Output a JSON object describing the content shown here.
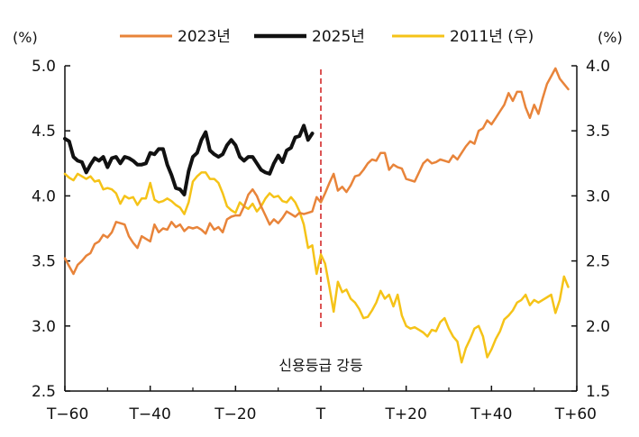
{
  "chart_data": {
    "type": "line",
    "left_axis_unit": "(%)",
    "right_axis_unit": "(%)",
    "x_ticks": [
      "T−60",
      "T−40",
      "T−20",
      "T",
      "T+20",
      "T+40",
      "T+60"
    ],
    "x_range": [
      -60,
      60
    ],
    "ylim_left": [
      2.5,
      5.0
    ],
    "ylim_right": [
      1.5,
      4.0
    ],
    "y_ticks_left": [
      "2.5",
      "3.0",
      "3.5",
      "4.0",
      "4.5",
      "5.0"
    ],
    "y_ticks_right": [
      "1.5",
      "2.0",
      "2.5",
      "3.0",
      "3.5",
      "4.0"
    ],
    "grid": false,
    "legend_position": "top",
    "annotation": {
      "text": "신용등급 강등",
      "x": 0
    },
    "series": [
      {
        "name": "2023년",
        "axis": "left",
        "color": "#e8843a",
        "width": 2.5,
        "points": [
          [
            -60,
            3.52
          ],
          [
            -59,
            3.46
          ],
          [
            -58,
            3.4
          ],
          [
            -57,
            3.47
          ],
          [
            -56,
            3.5
          ],
          [
            -55,
            3.54
          ],
          [
            -54,
            3.56
          ],
          [
            -53,
            3.63
          ],
          [
            -52,
            3.65
          ],
          [
            -51,
            3.7
          ],
          [
            -50,
            3.68
          ],
          [
            -49,
            3.72
          ],
          [
            -48,
            3.8
          ],
          [
            -47,
            3.79
          ],
          [
            -46,
            3.78
          ],
          [
            -45,
            3.69
          ],
          [
            -44,
            3.64
          ],
          [
            -43,
            3.6
          ],
          [
            -42,
            3.69
          ],
          [
            -41,
            3.67
          ],
          [
            -40,
            3.65
          ],
          [
            -39,
            3.78
          ],
          [
            -38,
            3.72
          ],
          [
            -37,
            3.75
          ],
          [
            -36,
            3.74
          ],
          [
            -35,
            3.8
          ],
          [
            -34,
            3.76
          ],
          [
            -33,
            3.78
          ],
          [
            -32,
            3.73
          ],
          [
            -31,
            3.76
          ],
          [
            -30,
            3.75
          ],
          [
            -29,
            3.76
          ],
          [
            -28,
            3.74
          ],
          [
            -27,
            3.71
          ],
          [
            -26,
            3.79
          ],
          [
            -25,
            3.74
          ],
          [
            -24,
            3.76
          ],
          [
            -23,
            3.72
          ],
          [
            -22,
            3.82
          ],
          [
            -21,
            3.84
          ],
          [
            -20,
            3.85
          ],
          [
            -19,
            3.85
          ],
          [
            -18,
            3.92
          ],
          [
            -17,
            4.01
          ],
          [
            -16,
            4.05
          ],
          [
            -15,
            4.0
          ],
          [
            -14,
            3.92
          ],
          [
            -13,
            3.85
          ],
          [
            -12,
            3.78
          ],
          [
            -11,
            3.82
          ],
          [
            -10,
            3.79
          ],
          [
            -9,
            3.83
          ],
          [
            -8,
            3.88
          ],
          [
            -7,
            3.86
          ],
          [
            -6,
            3.84
          ],
          [
            -5,
            3.87
          ],
          [
            -4,
            3.86
          ],
          [
            -3,
            3.87
          ],
          [
            -2,
            3.88
          ],
          [
            -1,
            3.99
          ],
          [
            0,
            3.95
          ],
          [
            1,
            4.02
          ],
          [
            2,
            4.1
          ],
          [
            3,
            4.17
          ],
          [
            4,
            4.04
          ],
          [
            5,
            4.07
          ],
          [
            6,
            4.03
          ],
          [
            7,
            4.08
          ],
          [
            8,
            4.15
          ],
          [
            9,
            4.16
          ],
          [
            10,
            4.2
          ],
          [
            11,
            4.25
          ],
          [
            12,
            4.28
          ],
          [
            13,
            4.27
          ],
          [
            14,
            4.33
          ],
          [
            15,
            4.33
          ],
          [
            16,
            4.2
          ],
          [
            17,
            4.24
          ],
          [
            18,
            4.22
          ],
          [
            19,
            4.21
          ],
          [
            20,
            4.13
          ],
          [
            21,
            4.12
          ],
          [
            22,
            4.11
          ],
          [
            23,
            4.18
          ],
          [
            24,
            4.25
          ],
          [
            25,
            4.28
          ],
          [
            26,
            4.25
          ],
          [
            27,
            4.26
          ],
          [
            28,
            4.28
          ],
          [
            29,
            4.27
          ],
          [
            30,
            4.26
          ],
          [
            31,
            4.31
          ],
          [
            32,
            4.28
          ],
          [
            33,
            4.33
          ],
          [
            34,
            4.38
          ],
          [
            35,
            4.42
          ],
          [
            36,
            4.4
          ],
          [
            37,
            4.5
          ],
          [
            38,
            4.52
          ],
          [
            39,
            4.58
          ],
          [
            40,
            4.55
          ],
          [
            41,
            4.6
          ],
          [
            42,
            4.65
          ],
          [
            43,
            4.7
          ],
          [
            44,
            4.79
          ],
          [
            45,
            4.73
          ],
          [
            46,
            4.8
          ],
          [
            47,
            4.8
          ],
          [
            48,
            4.68
          ],
          [
            49,
            4.6
          ],
          [
            50,
            4.7
          ],
          [
            51,
            4.63
          ],
          [
            52,
            4.75
          ],
          [
            53,
            4.86
          ],
          [
            54,
            4.92
          ],
          [
            55,
            4.98
          ],
          [
            56,
            4.9
          ],
          [
            57,
            4.86
          ],
          [
            58,
            4.82
          ]
        ]
      },
      {
        "name": "2025년",
        "axis": "left",
        "color": "#111111",
        "width": 4,
        "points": [
          [
            -60,
            4.44
          ],
          [
            -59,
            4.42
          ],
          [
            -58,
            4.3
          ],
          [
            -57,
            4.27
          ],
          [
            -56,
            4.26
          ],
          [
            -55,
            4.18
          ],
          [
            -54,
            4.24
          ],
          [
            -53,
            4.29
          ],
          [
            -52,
            4.27
          ],
          [
            -51,
            4.3
          ],
          [
            -50,
            4.22
          ],
          [
            -49,
            4.29
          ],
          [
            -48,
            4.3
          ],
          [
            -47,
            4.25
          ],
          [
            -46,
            4.3
          ],
          [
            -45,
            4.29
          ],
          [
            -44,
            4.27
          ],
          [
            -43,
            4.24
          ],
          [
            -42,
            4.24
          ],
          [
            -41,
            4.25
          ],
          [
            -40,
            4.33
          ],
          [
            -39,
            4.32
          ],
          [
            -38,
            4.36
          ],
          [
            -37,
            4.36
          ],
          [
            -36,
            4.24
          ],
          [
            -35,
            4.16
          ],
          [
            -34,
            4.06
          ],
          [
            -33,
            4.05
          ],
          [
            -32,
            4.01
          ],
          [
            -31,
            4.19
          ],
          [
            -30,
            4.3
          ],
          [
            -29,
            4.33
          ],
          [
            -28,
            4.43
          ],
          [
            -27,
            4.49
          ],
          [
            -26,
            4.35
          ],
          [
            -25,
            4.32
          ],
          [
            -24,
            4.3
          ],
          [
            -23,
            4.32
          ],
          [
            -22,
            4.39
          ],
          [
            -21,
            4.43
          ],
          [
            -20,
            4.39
          ],
          [
            -19,
            4.3
          ],
          [
            -18,
            4.27
          ],
          [
            -17,
            4.3
          ],
          [
            -16,
            4.3
          ],
          [
            -15,
            4.25
          ],
          [
            -14,
            4.2
          ],
          [
            -13,
            4.18
          ],
          [
            -12,
            4.17
          ],
          [
            -11,
            4.25
          ],
          [
            -10,
            4.31
          ],
          [
            -9,
            4.26
          ],
          [
            -8,
            4.35
          ],
          [
            -7,
            4.37
          ],
          [
            -6,
            4.45
          ],
          [
            -5,
            4.46
          ],
          [
            -4,
            4.54
          ],
          [
            -3,
            4.43
          ],
          [
            -2,
            4.48
          ]
        ]
      },
      {
        "name": "2011년 (우)",
        "axis": "right",
        "color": "#f5c318",
        "width": 2.5,
        "points": [
          [
            -60,
            3.17
          ],
          [
            -59,
            3.14
          ],
          [
            -58,
            3.12
          ],
          [
            -57,
            3.17
          ],
          [
            -56,
            3.15
          ],
          [
            -55,
            3.13
          ],
          [
            -54,
            3.15
          ],
          [
            -53,
            3.11
          ],
          [
            -52,
            3.12
          ],
          [
            -51,
            3.05
          ],
          [
            -50,
            3.06
          ],
          [
            -49,
            3.05
          ],
          [
            -48,
            3.02
          ],
          [
            -47,
            2.94
          ],
          [
            -46,
            3.0
          ],
          [
            -45,
            2.98
          ],
          [
            -44,
            2.99
          ],
          [
            -43,
            2.93
          ],
          [
            -42,
            2.98
          ],
          [
            -41,
            2.98
          ],
          [
            -40,
            3.1
          ],
          [
            -39,
            2.97
          ],
          [
            -38,
            2.95
          ],
          [
            -37,
            2.96
          ],
          [
            -36,
            2.98
          ],
          [
            -35,
            2.96
          ],
          [
            -34,
            2.93
          ],
          [
            -33,
            2.91
          ],
          [
            -32,
            2.86
          ],
          [
            -31,
            2.95
          ],
          [
            -30,
            3.11
          ],
          [
            -29,
            3.15
          ],
          [
            -28,
            3.18
          ],
          [
            -27,
            3.18
          ],
          [
            -26,
            3.13
          ],
          [
            -25,
            3.13
          ],
          [
            -24,
            3.1
          ],
          [
            -23,
            3.02
          ],
          [
            -22,
            2.92
          ],
          [
            -21,
            2.89
          ],
          [
            -20,
            2.87
          ],
          [
            -19,
            2.95
          ],
          [
            -18,
            2.92
          ],
          [
            -17,
            2.9
          ],
          [
            -16,
            2.94
          ],
          [
            -15,
            2.88
          ],
          [
            -14,
            2.92
          ],
          [
            -13,
            2.98
          ],
          [
            -12,
            3.02
          ],
          [
            -11,
            2.99
          ],
          [
            -10,
            3.0
          ],
          [
            -9,
            2.96
          ],
          [
            -8,
            2.95
          ],
          [
            -7,
            2.99
          ],
          [
            -6,
            2.95
          ],
          [
            -5,
            2.88
          ],
          [
            -4,
            2.78
          ],
          [
            -3,
            2.6
          ],
          [
            -2,
            2.62
          ],
          [
            -1,
            2.4
          ],
          [
            0,
            2.55
          ],
          [
            1,
            2.48
          ],
          [
            2,
            2.3
          ],
          [
            3,
            2.11
          ],
          [
            4,
            2.34
          ],
          [
            5,
            2.26
          ],
          [
            6,
            2.28
          ],
          [
            7,
            2.21
          ],
          [
            8,
            2.18
          ],
          [
            9,
            2.13
          ],
          [
            10,
            2.06
          ],
          [
            11,
            2.07
          ],
          [
            12,
            2.12
          ],
          [
            13,
            2.18
          ],
          [
            14,
            2.27
          ],
          [
            15,
            2.21
          ],
          [
            16,
            2.24
          ],
          [
            17,
            2.15
          ],
          [
            18,
            2.24
          ],
          [
            19,
            2.08
          ],
          [
            20,
            2.0
          ],
          [
            21,
            1.98
          ],
          [
            22,
            1.99
          ],
          [
            23,
            1.97
          ],
          [
            24,
            1.95
          ],
          [
            25,
            1.92
          ],
          [
            26,
            1.97
          ],
          [
            27,
            1.96
          ],
          [
            28,
            2.03
          ],
          [
            29,
            2.06
          ],
          [
            30,
            1.98
          ],
          [
            31,
            1.92
          ],
          [
            32,
            1.88
          ],
          [
            33,
            1.72
          ],
          [
            34,
            1.83
          ],
          [
            35,
            1.9
          ],
          [
            36,
            1.98
          ],
          [
            37,
            2.0
          ],
          [
            38,
            1.92
          ],
          [
            39,
            1.76
          ],
          [
            40,
            1.82
          ],
          [
            41,
            1.9
          ],
          [
            42,
            1.96
          ],
          [
            43,
            2.05
          ],
          [
            44,
            2.08
          ],
          [
            45,
            2.12
          ],
          [
            46,
            2.18
          ],
          [
            47,
            2.2
          ],
          [
            48,
            2.24
          ],
          [
            49,
            2.16
          ],
          [
            50,
            2.2
          ],
          [
            51,
            2.18
          ],
          [
            52,
            2.2
          ],
          [
            53,
            2.22
          ],
          [
            54,
            2.24
          ],
          [
            55,
            2.1
          ],
          [
            56,
            2.2
          ],
          [
            57,
            2.38
          ],
          [
            58,
            2.3
          ]
        ]
      }
    ]
  }
}
